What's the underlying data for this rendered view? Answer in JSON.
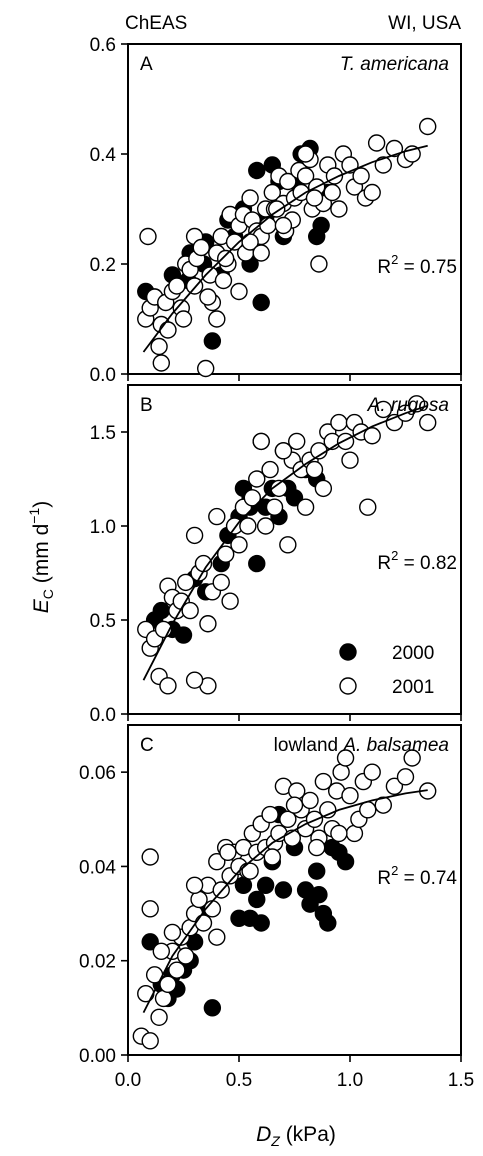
{
  "header": {
    "left": "ChEAS",
    "right": "WI, USA"
  },
  "xlabel": {
    "var": "D",
    "sub": "Z",
    "unit": " (kPa)"
  },
  "ylabel": {
    "var": "E",
    "sub": "C",
    "pre": " (mm d",
    "sup": "−1",
    "post": ")"
  },
  "legend": [
    {
      "label": "2000",
      "fill": "#000000"
    },
    {
      "label": "2001",
      "fill": "#ffffff"
    }
  ],
  "colors": {
    "filled": "#000000",
    "open": "#ffffff",
    "stroke": "#000000"
  },
  "chart_data": [
    {
      "type": "scatter",
      "panel": "A",
      "prefix": "",
      "species": "T. americana",
      "r2_text": "R",
      "r2_value": " = 0.75",
      "xlim": [
        0,
        1.5
      ],
      "ylim": [
        0,
        0.6
      ],
      "xticks": [
        "0.0",
        "0.5",
        "1.0",
        "1.5"
      ],
      "yticks": [
        "0.0",
        "0.2",
        "0.4",
        "0.6"
      ],
      "fit": {
        "x": [
          0.07,
          0.2,
          0.35,
          0.5,
          0.65,
          0.8,
          0.95,
          1.1,
          1.25,
          1.35
        ],
        "y": [
          0.04,
          0.11,
          0.18,
          0.24,
          0.29,
          0.33,
          0.36,
          0.385,
          0.405,
          0.415
        ]
      },
      "series": [
        {
          "year": "2000",
          "x": [
            0.08,
            0.12,
            0.2,
            0.27,
            0.3,
            0.34,
            0.38,
            0.42,
            0.45,
            0.48,
            0.52,
            0.55,
            0.58,
            0.6,
            0.62,
            0.65,
            0.68,
            0.7,
            0.75,
            0.78,
            0.82,
            0.85,
            0.87,
            0.9,
            0.35,
            0.28
          ],
          "y": [
            0.15,
            0.14,
            0.18,
            0.17,
            0.21,
            0.2,
            0.06,
            0.18,
            0.28,
            0.25,
            0.3,
            0.2,
            0.37,
            0.13,
            0.28,
            0.38,
            0.35,
            0.25,
            0.35,
            0.4,
            0.41,
            0.25,
            0.27,
            0.33,
            0.24,
            0.22
          ]
        },
        {
          "year": "2001",
          "x": [
            0.08,
            0.09,
            0.1,
            0.12,
            0.14,
            0.15,
            0.17,
            0.2,
            0.22,
            0.24,
            0.26,
            0.28,
            0.3,
            0.31,
            0.33,
            0.35,
            0.37,
            0.38,
            0.4,
            0.42,
            0.43,
            0.45,
            0.46,
            0.48,
            0.5,
            0.52,
            0.53,
            0.55,
            0.56,
            0.58,
            0.6,
            0.62,
            0.63,
            0.65,
            0.66,
            0.68,
            0.7,
            0.71,
            0.72,
            0.74,
            0.75,
            0.77,
            0.78,
            0.8,
            0.82,
            0.83,
            0.85,
            0.86,
            0.88,
            0.9,
            0.92,
            0.93,
            0.95,
            0.97,
            1.0,
            1.02,
            1.05,
            1.07,
            1.1,
            1.12,
            1.15,
            1.2,
            1.25,
            1.28,
            1.35,
            0.15,
            0.18,
            0.25,
            0.3,
            0.36,
            0.4,
            0.44,
            0.5,
            0.55,
            0.6,
            0.67,
            0.7,
            0.8,
            0.84
          ],
          "y": [
            0.1,
            0.25,
            0.12,
            0.14,
            0.05,
            0.09,
            0.13,
            0.15,
            0.16,
            0.12,
            0.2,
            0.19,
            0.25,
            0.21,
            0.23,
            0.01,
            0.18,
            0.13,
            0.22,
            0.25,
            0.17,
            0.2,
            0.29,
            0.24,
            0.27,
            0.29,
            0.22,
            0.32,
            0.28,
            0.26,
            0.25,
            0.3,
            0.27,
            0.33,
            0.3,
            0.36,
            0.31,
            0.26,
            0.35,
            0.28,
            0.32,
            0.37,
            0.33,
            0.36,
            0.39,
            0.3,
            0.34,
            0.2,
            0.31,
            0.38,
            0.33,
            0.36,
            0.3,
            0.4,
            0.38,
            0.34,
            0.36,
            0.32,
            0.33,
            0.42,
            0.38,
            0.41,
            0.39,
            0.4,
            0.45,
            0.02,
            0.08,
            0.1,
            0.16,
            0.14,
            0.1,
            0.21,
            0.15,
            0.24,
            0.22,
            0.3,
            0.27,
            0.4,
            0.32
          ]
        }
      ]
    },
    {
      "type": "scatter",
      "panel": "B",
      "prefix": "",
      "species": "A. rugosa",
      "r2_text": "R",
      "r2_value": " = 0.82",
      "xlim": [
        0,
        1.5
      ],
      "ylim": [
        0,
        1.75
      ],
      "xticks": [
        "0.0",
        "0.5",
        "1.0",
        "1.5"
      ],
      "yticks": [
        "0.0",
        "0.5",
        "1.0",
        "1.5"
      ],
      "ytick_values": [
        0,
        0.5,
        1.0,
        1.5
      ],
      "fit": {
        "x": [
          0.07,
          0.2,
          0.35,
          0.5,
          0.65,
          0.8,
          0.95,
          1.1,
          1.25,
          1.35
        ],
        "y": [
          0.18,
          0.48,
          0.78,
          1.02,
          1.2,
          1.33,
          1.44,
          1.53,
          1.6,
          1.64
        ]
      },
      "series": [
        {
          "year": "2000",
          "x": [
            0.12,
            0.15,
            0.2,
            0.22,
            0.25,
            0.3,
            0.35,
            0.42,
            0.45,
            0.5,
            0.52,
            0.55,
            0.58,
            0.62,
            0.65,
            0.68,
            0.72,
            0.75,
            0.8,
            0.85,
            0.55
          ],
          "y": [
            0.5,
            0.55,
            0.45,
            0.6,
            0.42,
            0.72,
            0.65,
            0.8,
            0.95,
            1.05,
            1.2,
            1.15,
            0.8,
            1.1,
            1.2,
            1.05,
            1.2,
            1.15,
            1.3,
            1.25,
            1.1
          ]
        },
        {
          "year": "2001",
          "x": [
            0.08,
            0.1,
            0.12,
            0.14,
            0.16,
            0.18,
            0.2,
            0.22,
            0.24,
            0.26,
            0.28,
            0.3,
            0.32,
            0.34,
            0.36,
            0.38,
            0.4,
            0.42,
            0.44,
            0.46,
            0.48,
            0.5,
            0.52,
            0.54,
            0.56,
            0.58,
            0.6,
            0.62,
            0.64,
            0.66,
            0.68,
            0.7,
            0.72,
            0.74,
            0.76,
            0.78,
            0.8,
            0.82,
            0.84,
            0.86,
            0.88,
            0.9,
            0.92,
            0.95,
            0.98,
            1.0,
            1.02,
            1.05,
            1.08,
            1.1,
            1.15,
            1.2,
            1.25,
            1.3,
            1.35,
            0.18,
            0.3,
            0.36,
            0.6,
            0.7
          ],
          "y": [
            0.45,
            0.35,
            0.4,
            0.2,
            0.45,
            0.68,
            0.62,
            0.55,
            0.6,
            0.7,
            0.55,
            0.95,
            0.75,
            0.8,
            0.15,
            0.65,
            1.05,
            0.7,
            0.85,
            0.6,
            1.0,
            0.9,
            1.1,
            1.0,
            1.15,
            1.25,
            1.45,
            1.0,
            1.3,
            1.1,
            1.2,
            1.4,
            0.9,
            1.35,
            1.45,
            1.3,
            1.1,
            1.35,
            1.3,
            1.4,
            1.2,
            1.5,
            1.45,
            1.55,
            1.45,
            1.35,
            1.55,
            1.5,
            1.1,
            1.48,
            1.62,
            1.55,
            1.6,
            1.65,
            1.55,
            0.15,
            0.18,
            0.48,
            1.45,
            1.4
          ]
        }
      ]
    },
    {
      "type": "scatter",
      "panel": "C",
      "prefix": "lowland ",
      "species": "A. balsamea",
      "r2_text": "R",
      "r2_value": " = 0.74",
      "xlim": [
        0,
        1.5
      ],
      "ylim": [
        0,
        0.07
      ],
      "xticks": [
        "0.0",
        "0.5",
        "1.0",
        "1.5"
      ],
      "yticks": [
        "0.00",
        "0.02",
        "0.04",
        "0.06"
      ],
      "ytick_values": [
        0,
        0.02,
        0.04,
        0.06
      ],
      "fit": {
        "x": [
          0.07,
          0.2,
          0.35,
          0.5,
          0.65,
          0.8,
          0.95,
          1.1,
          1.25,
          1.35
        ],
        "y": [
          0.009,
          0.021,
          0.031,
          0.039,
          0.045,
          0.049,
          0.052,
          0.054,
          0.0555,
          0.0562
        ]
      },
      "series": [
        {
          "year": "2000",
          "x": [
            0.1,
            0.15,
            0.18,
            0.2,
            0.22,
            0.25,
            0.28,
            0.3,
            0.32,
            0.38,
            0.5,
            0.52,
            0.55,
            0.58,
            0.6,
            0.62,
            0.65,
            0.68,
            0.7,
            0.75,
            0.8,
            0.85,
            0.88,
            0.9,
            0.92,
            0.95,
            0.98,
            0.82,
            0.86
          ],
          "y": [
            0.024,
            0.015,
            0.012,
            0.017,
            0.014,
            0.018,
            0.02,
            0.024,
            0.03,
            0.01,
            0.029,
            0.036,
            0.029,
            0.033,
            0.028,
            0.036,
            0.041,
            0.051,
            0.035,
            0.044,
            0.035,
            0.039,
            0.03,
            0.028,
            0.044,
            0.043,
            0.041,
            0.032,
            0.034
          ]
        },
        {
          "year": "2001",
          "x": [
            0.06,
            0.08,
            0.1,
            0.12,
            0.14,
            0.16,
            0.18,
            0.2,
            0.22,
            0.24,
            0.26,
            0.28,
            0.3,
            0.32,
            0.34,
            0.36,
            0.38,
            0.4,
            0.42,
            0.44,
            0.46,
            0.48,
            0.5,
            0.52,
            0.54,
            0.56,
            0.58,
            0.6,
            0.62,
            0.64,
            0.66,
            0.68,
            0.7,
            0.72,
            0.74,
            0.76,
            0.78,
            0.8,
            0.82,
            0.84,
            0.86,
            0.88,
            0.9,
            0.92,
            0.94,
            0.96,
            0.98,
            1.0,
            1.02,
            1.04,
            1.06,
            1.08,
            1.1,
            1.15,
            1.2,
            1.25,
            1.28,
            1.35,
            0.1,
            0.1,
            0.15,
            0.2,
            0.3,
            0.4,
            0.45,
            0.55,
            0.65,
            0.75,
            0.85,
            0.95
          ],
          "y": [
            0.004,
            0.013,
            0.003,
            0.017,
            0.008,
            0.012,
            0.015,
            0.022,
            0.018,
            0.025,
            0.021,
            0.027,
            0.03,
            0.033,
            0.028,
            0.036,
            0.031,
            0.041,
            0.035,
            0.044,
            0.038,
            0.043,
            0.04,
            0.044,
            0.039,
            0.047,
            0.043,
            0.049,
            0.044,
            0.051,
            0.045,
            0.047,
            0.057,
            0.05,
            0.046,
            0.056,
            0.052,
            0.048,
            0.054,
            0.05,
            0.046,
            0.058,
            0.052,
            0.048,
            0.056,
            0.06,
            0.063,
            0.055,
            0.047,
            0.05,
            0.058,
            0.052,
            0.06,
            0.053,
            0.057,
            0.059,
            0.063,
            0.056,
            0.042,
            0.031,
            0.022,
            0.026,
            0.036,
            0.025,
            0.043,
            0.039,
            0.042,
            0.053,
            0.044,
            0.047
          ]
        }
      ]
    }
  ]
}
